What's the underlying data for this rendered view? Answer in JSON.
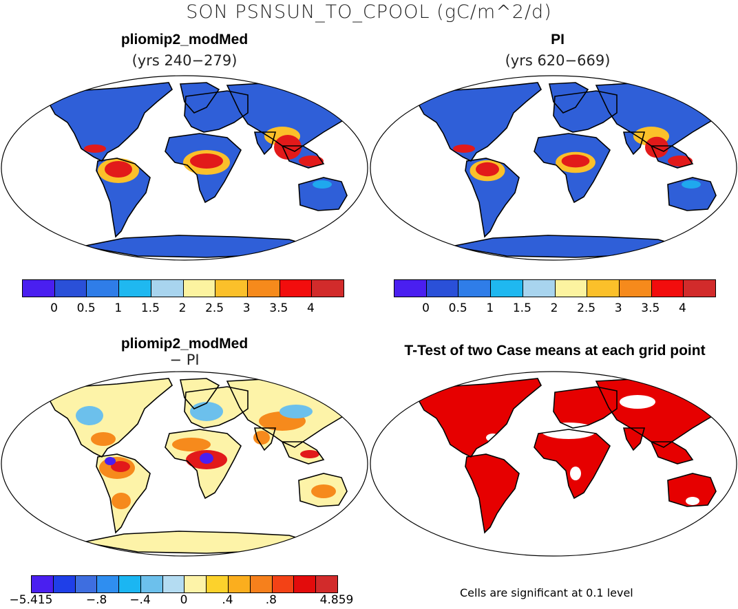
{
  "figure": {
    "title": "SON PSNSUN_TO_CPOOL (gC/m^2/d)"
  },
  "panels": {
    "top_left": {
      "title": "pliomip2_modMed",
      "subtitle": "(yrs 240−279)"
    },
    "top_right": {
      "title": "PI",
      "subtitle": "(yrs 620−669)"
    },
    "bottom_left": {
      "title": "pliomip2_modMed",
      "subtitle": "− PI"
    },
    "bottom_right": {
      "title": "T-Test of two Case means at each grid point",
      "footnote": "Cells are significant at 0.1 level"
    }
  },
  "colorbars": {
    "absolute": {
      "colors": [
        "#4a1ff0",
        "#2a50d8",
        "#2f7de8",
        "#1fb8f0",
        "#a8d4ee",
        "#fcf3a0",
        "#fbc02a",
        "#f68a1c",
        "#f20d0d",
        "#d22b2b"
      ],
      "labels": [
        "0",
        "0.5",
        "1",
        "1.5",
        "2",
        "2.5",
        "3",
        "3.5",
        "4"
      ]
    },
    "difference": {
      "colors": [
        "#4a1ff0",
        "#1f3fe8",
        "#3e6ee0",
        "#2f8ef0",
        "#1bb6f2",
        "#6cc0ec",
        "#b4dcf2",
        "#fdf3a8",
        "#fcd22c",
        "#fbae1e",
        "#f6801c",
        "#f34216",
        "#e30c0c",
        "#d22b2b"
      ],
      "labels": [
        "−5.415",
        "−.8",
        "−.4",
        "0",
        ".4",
        ".8",
        "4.859"
      ]
    }
  },
  "map_colors": {
    "ocean": "#ffffff",
    "cold_land": "#2f5fd8",
    "temperate": "#1fa8ee",
    "warm": "#fbc02a",
    "tropical": "#e21a1a",
    "diff_base": "#fdf3a8",
    "diff_pos": "#f68a1c",
    "diff_neg": "#6cc0ec",
    "sig_red": "#e60000",
    "coast": "#000000"
  }
}
